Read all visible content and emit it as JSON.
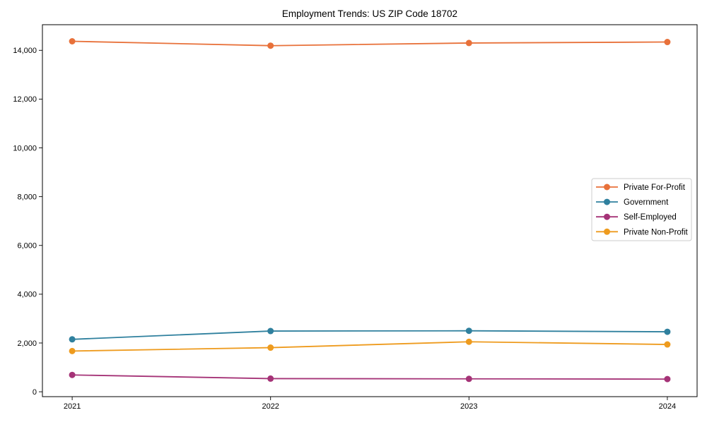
{
  "title": "Employment Trends: US ZIP Code 18702",
  "chart_data": {
    "type": "line",
    "title": "Employment Trends: US ZIP Code 18702",
    "xlabel": "",
    "ylabel": "",
    "x": [
      2021,
      2022,
      2023,
      2024
    ],
    "x_tick_labels": [
      "2021",
      "2022",
      "2023",
      "2024"
    ],
    "series": [
      {
        "name": "Private For-Profit",
        "color": "#E8713A",
        "values": [
          14370,
          14190,
          14300,
          14340
        ]
      },
      {
        "name": "Government",
        "color": "#2F809E",
        "values": [
          2150,
          2490,
          2500,
          2460
        ]
      },
      {
        "name": "Self-Employed",
        "color": "#A53377",
        "values": [
          690,
          540,
          530,
          520
        ]
      },
      {
        "name": "Private Non-Profit",
        "color": "#EE9B1E",
        "values": [
          1670,
          1810,
          2050,
          1940
        ]
      }
    ],
    "xlim": [
      2020.85,
      2024.15
    ],
    "ylim": [
      -200,
      15050
    ],
    "yticks": [
      0,
      2000,
      4000,
      6000,
      8000,
      10000,
      12000,
      14000
    ],
    "ytick_labels": [
      "0",
      "2,000",
      "4,000",
      "6,000",
      "8,000",
      "10,000",
      "12,000",
      "14,000"
    ],
    "grid": false,
    "legend_position": "center right",
    "marker": "circle",
    "line_width": 1.8,
    "marker_radius": 4.5
  }
}
